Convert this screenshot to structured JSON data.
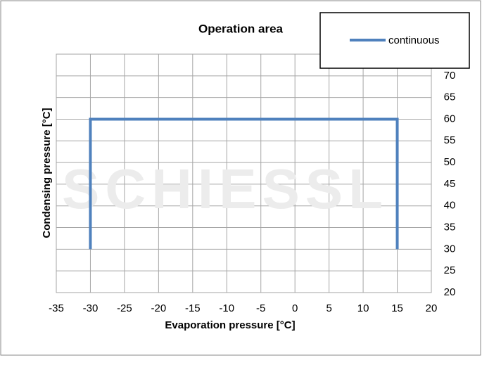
{
  "chart_data": {
    "type": "line",
    "title": "Operation area",
    "x_label": "Evaporation pressure [°C]",
    "y_label": "Condensing pressure [°C]",
    "watermark": "SCHIESSL",
    "xlim": [
      -35,
      20
    ],
    "xticks": [
      -35,
      -30,
      -25,
      -20,
      -15,
      -10,
      -5,
      0,
      5,
      10,
      15,
      20
    ],
    "ylim": [
      20,
      75
    ],
    "yticks": [
      20,
      25,
      30,
      35,
      40,
      45,
      50,
      55,
      60,
      65,
      70
    ],
    "grid": true,
    "legend": "top-right",
    "series": [
      {
        "name": "continuous",
        "color": "#4f81bd",
        "x": [
          -30,
          -30,
          15,
          15
        ],
        "values": [
          30,
          60,
          60,
          30
        ]
      }
    ]
  }
}
